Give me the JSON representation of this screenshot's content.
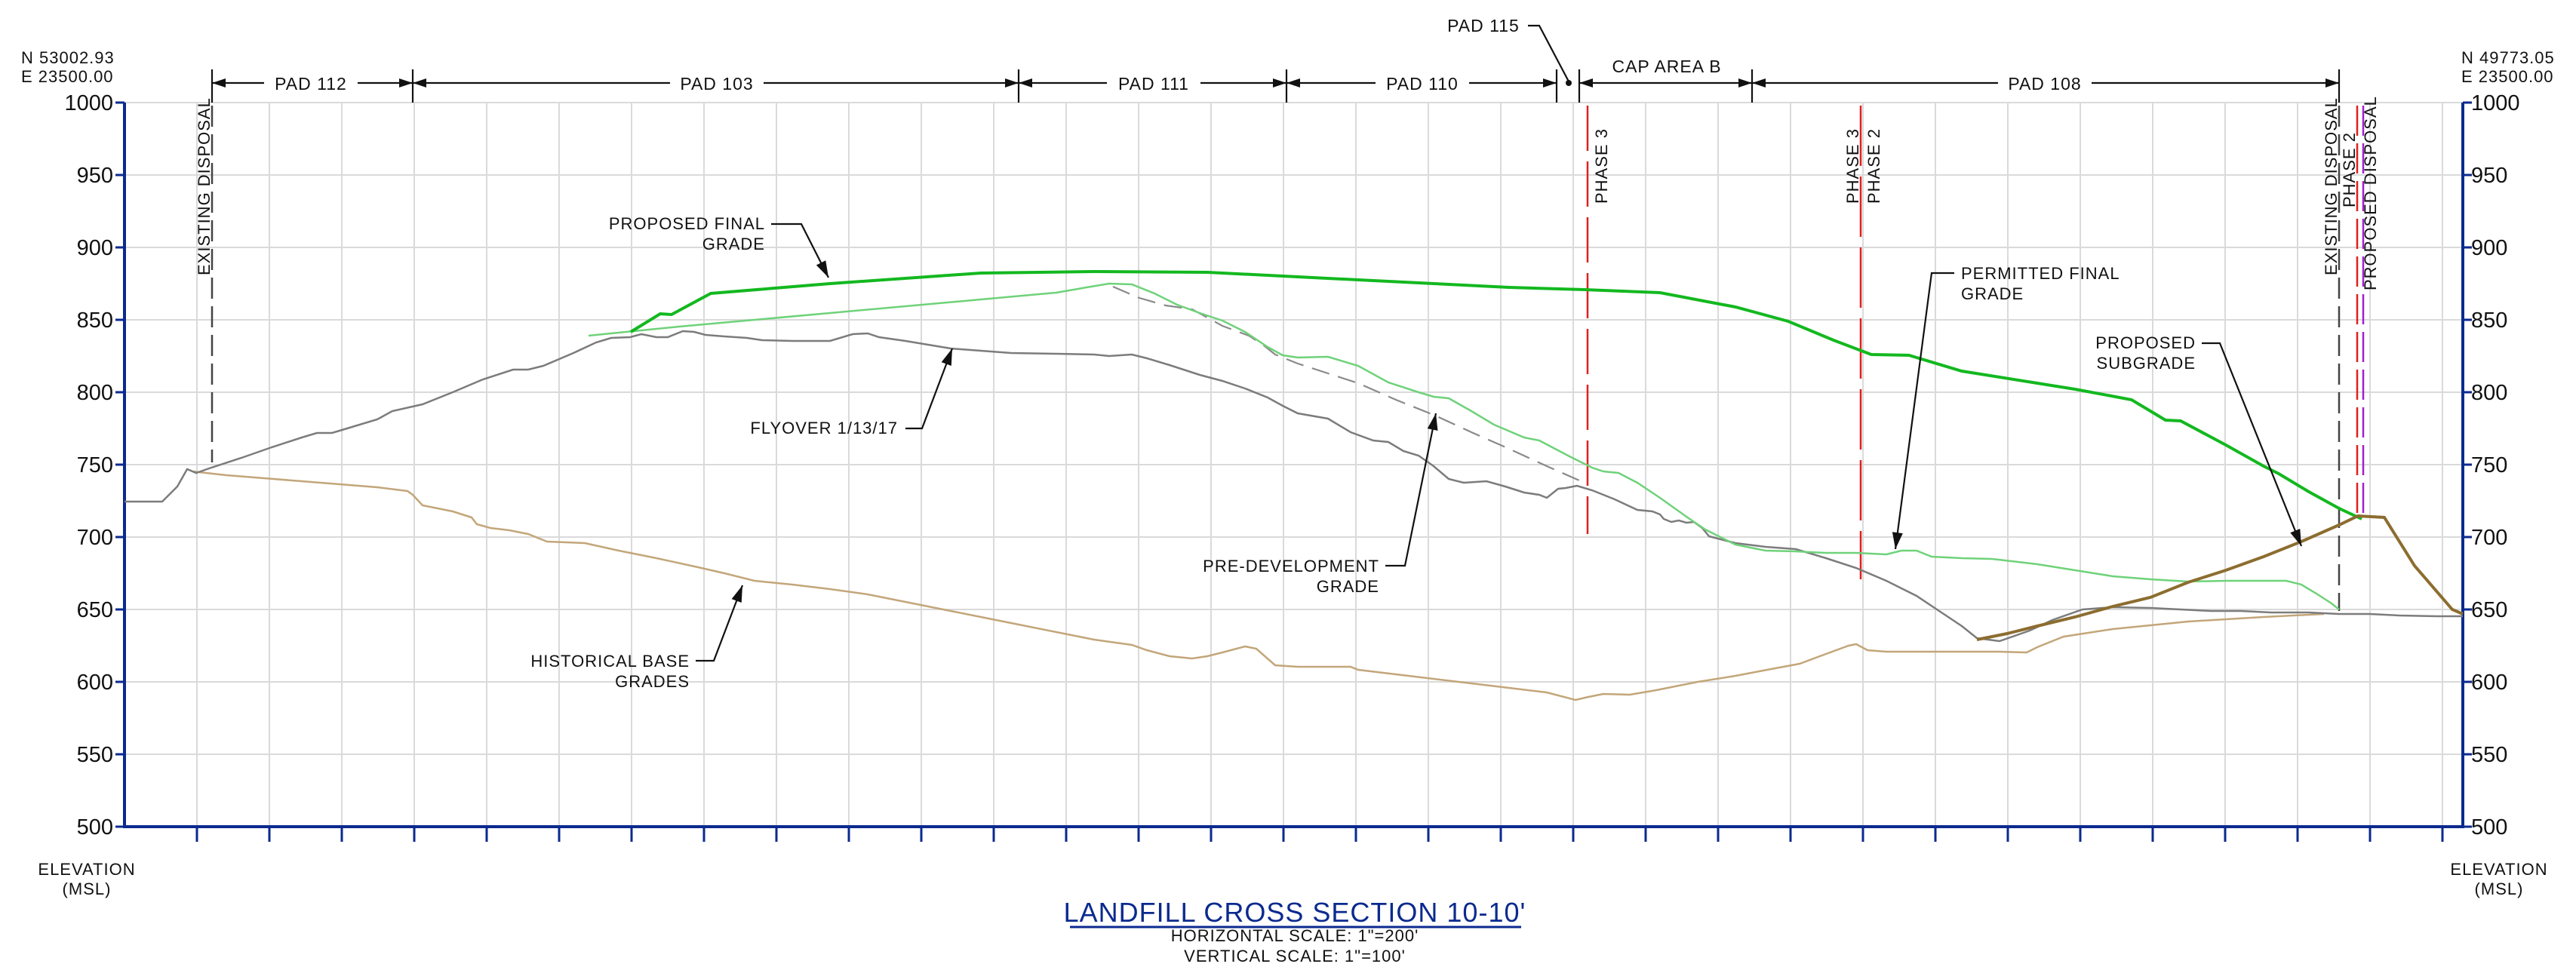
{
  "coords": {
    "left": {
      "n": "N 53002.93",
      "e": "E 23500.00"
    },
    "right": {
      "n": "N 49773.05",
      "e": "E 23500.00"
    }
  },
  "y_axis": {
    "ticks": [
      "1000",
      "950",
      "900",
      "850",
      "800",
      "750",
      "700",
      "650",
      "600",
      "550",
      "500"
    ],
    "label_line1": "ELEVATION",
    "label_line2": "(MSL)"
  },
  "pads": [
    "PAD 112",
    "PAD 103",
    "PAD 111",
    "PAD 110",
    "CAP AREA B",
    "PAD 108"
  ],
  "pad_115_label": "PAD 115",
  "vertical_labels": {
    "existing_disposal_left": "EXISTING DISPOSAL",
    "phase3_a": "PHASE 3",
    "phase3_b": "PHASE 3",
    "phase2": "PHASE 2",
    "existing_disposal_right": "EXISTING DISPOSAL",
    "phase2_right": "PHASE 2",
    "proposed_disposal": "PROPOSED DISPOSAL"
  },
  "annotations": {
    "proposed_final_grade": [
      "PROPOSED FINAL",
      "GRADE"
    ],
    "permitted_final_grade": [
      "PERMITTED FINAL",
      "GRADE"
    ],
    "proposed_subgrade": [
      "PROPOSED",
      "SUBGRADE"
    ],
    "flyover": [
      "FLYOVER 1/13/17"
    ],
    "pre_development_grade": [
      "PRE-DEVELOPMENT",
      "GRADE"
    ],
    "historical_base_grades": [
      "HISTORICAL BASE",
      "GRADES"
    ]
  },
  "title": {
    "main": "LANDFILL CROSS SECTION 10-10'",
    "horizontal_scale": "HORIZONTAL SCALE: 1\"=200'",
    "vertical_scale": "VERTICAL SCALE: 1\"=100'"
  },
  "colors": {
    "axis": "#0b2a8f",
    "proposed_final_grade": "#13b81f",
    "permitted_final_grade": "#6fd27a",
    "flyover": "#7c7c7c",
    "pre_development": "#8a8a8a",
    "historical_base": "#c3a67a",
    "proposed_subgrade": "#8c6d2f",
    "phase_line": "#e02020"
  }
}
